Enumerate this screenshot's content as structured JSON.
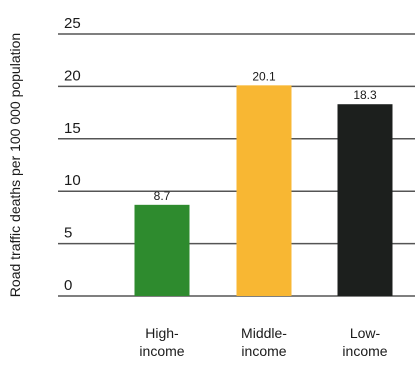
{
  "chart_data": {
    "type": "bar",
    "title": "",
    "ylabel": "Road traffic deaths per 100 000 population",
    "xlabel": "",
    "ylim": [
      0,
      25
    ],
    "yticks": [
      0,
      5,
      10,
      15,
      20,
      25
    ],
    "grid": true,
    "categories": [
      {
        "line1": "High-",
        "line2": "income"
      },
      {
        "line1": "Middle-",
        "line2": "income"
      },
      {
        "line1": "Low-",
        "line2": "income"
      }
    ],
    "values": [
      8.7,
      20.1,
      18.3
    ],
    "value_labels": [
      "8.7",
      "20.1",
      "18.3"
    ],
    "colors": [
      "#2e8b2e",
      "#f8b733",
      "#1c1f1d"
    ]
  }
}
